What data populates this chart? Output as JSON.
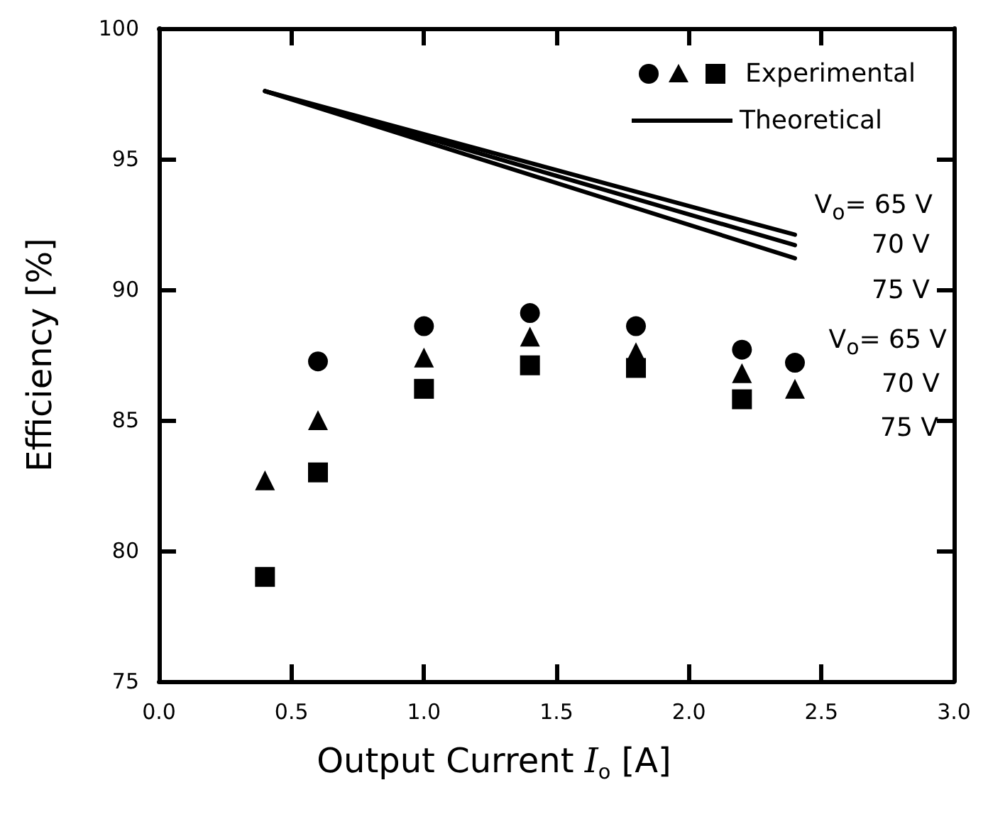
{
  "chart_data": {
    "type": "scatter",
    "xlabel": "Output Current I$_{o}$ [A]",
    "ylabel": "Efficiency [%]",
    "xlim": [
      0,
      3
    ],
    "xticks": [
      {
        "value": 0,
        "label": "0.0"
      },
      {
        "value": 0.5,
        "label": "0.5"
      },
      {
        "value": 1,
        "label": "1.0"
      },
      {
        "value": 1.5,
        "label": "1.5"
      },
      {
        "value": 2,
        "label": "2.0"
      },
      {
        "value": 2.5,
        "label": "2.5"
      },
      {
        "value": 3,
        "label": "3.0"
      }
    ],
    "ylim": [
      75,
      100
    ],
    "yticks": [
      75,
      80,
      85,
      90,
      95,
      100
    ],
    "grid": false,
    "legend": "top right",
    "series": [
      {
        "marker": "circle",
        "color": "#000000",
        "x": [
          0.6,
          1.0,
          1.4,
          1.8,
          2.2,
          2.4
        ],
        "values": [
          87.25,
          88.6,
          89.1,
          88.6,
          87.7,
          87.2
        ]
      },
      {
        "marker": "triangle",
        "color": "#000000",
        "x": [
          0.4,
          0.6,
          1.0,
          1.4,
          1.8,
          2.2,
          2.4
        ],
        "values": [
          82.7,
          85.0,
          87.4,
          88.2,
          87.6,
          86.8,
          86.2
        ]
      },
      {
        "name": "Experimental",
        "marker": "square",
        "color": "#000000",
        "x": [
          0.4,
          0.6,
          1.0,
          1.4,
          1.8,
          2.2
        ],
        "values": [
          79.0,
          83.0,
          86.2,
          87.1,
          87.0,
          85.8
        ]
      },
      {
        "name": "Theoretical",
        "type": "line",
        "line_style": "solid",
        "color": "#000000",
        "x": [
          0.4,
          2.4
        ],
        "values": [
          97.6,
          92.1
        ]
      },
      {
        "type": "line",
        "line_style": "solid",
        "color": "#000000",
        "x": [
          0.4,
          2.4
        ],
        "values": [
          97.6,
          91.7
        ]
      },
      {
        "type": "line",
        "line_style": "solid",
        "color": "#000000",
        "x": [
          0.4,
          2.4
        ],
        "values": [
          97.6,
          91.2
        ]
      }
    ],
    "annotations": [
      "V$_{o}$= 65 V",
      "70 V",
      "75 V",
      "V$_{o}$= 65 V",
      "70 V",
      "75 V"
    ]
  }
}
